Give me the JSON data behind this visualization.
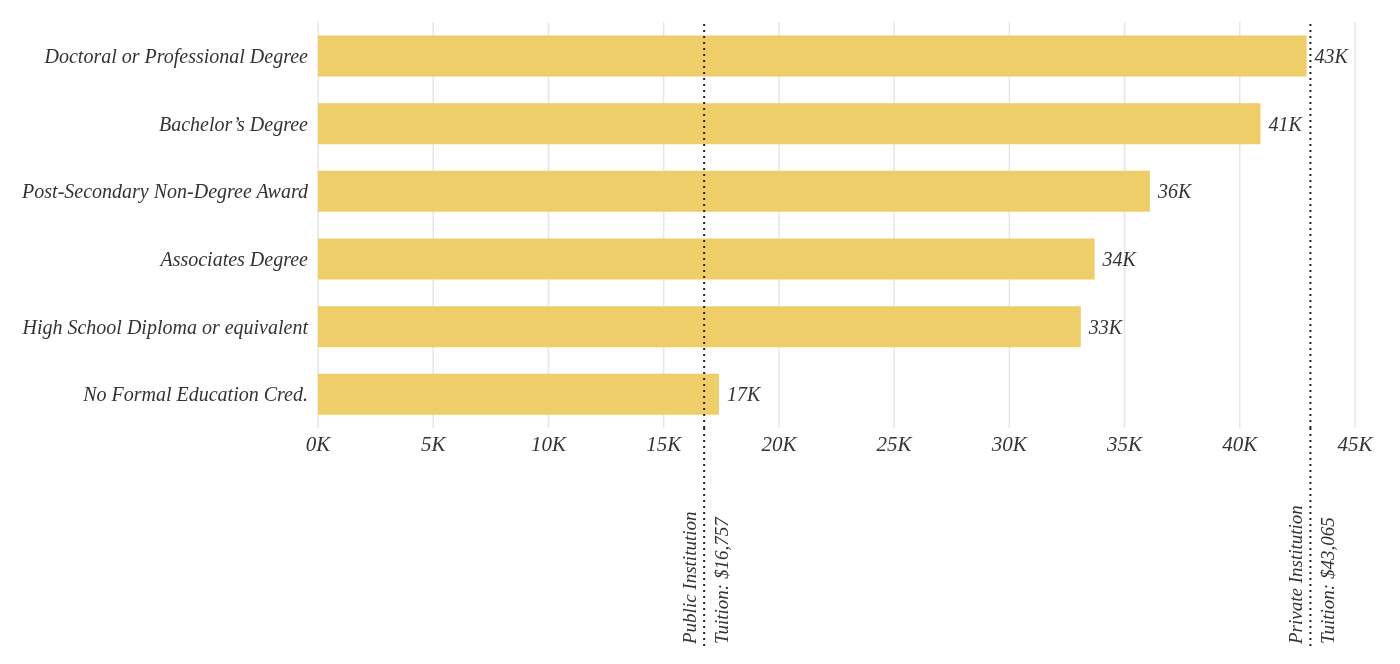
{
  "chart_data": {
    "type": "bar",
    "orientation": "horizontal",
    "categories": [
      "Doctoral or Professional Degree",
      "Bachelor’s Degree",
      "Post-Secondary Non-Degree Award",
      "Associates Degree",
      "High School Diploma or equivalent",
      "No Formal Education Cred."
    ],
    "values": [
      42.9,
      40.9,
      36.1,
      33.7,
      33.1,
      17.4
    ],
    "value_labels": [
      "43K",
      "41K",
      "36K",
      "34K",
      "33K",
      "17K"
    ],
    "color": "#efcd68",
    "xlim": [
      0,
      45
    ],
    "xticks": [
      {
        "value": 0,
        "label": "0K"
      },
      {
        "value": 5,
        "label": "5K"
      },
      {
        "value": 10,
        "label": "10K"
      },
      {
        "value": 15,
        "label": "15K"
      },
      {
        "value": 20,
        "label": "20K"
      },
      {
        "value": 25,
        "label": "25K"
      },
      {
        "value": 30,
        "label": "30K"
      },
      {
        "value": 35,
        "label": "35K"
      },
      {
        "value": 40,
        "label": "40K"
      },
      {
        "value": 45,
        "label": "45K"
      }
    ],
    "grid": "x",
    "ref_lines": [
      {
        "axis": "x",
        "value": 16.757,
        "label": "Public Institution Tuition: $16,757",
        "color": "#222222",
        "line_style": "dotted"
      },
      {
        "axis": "x",
        "value": 43.065,
        "label": "Private Institution Tuition: $43,065",
        "color": "#222222",
        "line_style": "dotted"
      }
    ]
  }
}
